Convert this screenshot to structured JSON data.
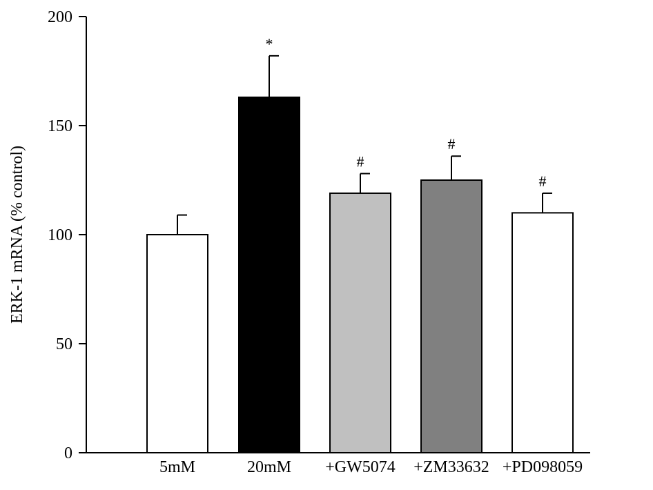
{
  "chart_data": {
    "type": "bar",
    "title": "",
    "xlabel": "",
    "ylabel": "ERK-1 mRNA (% control)",
    "ylim": [
      0,
      200
    ],
    "yticks": [
      0,
      50,
      100,
      150,
      200
    ],
    "grid": false,
    "categories": [
      "5mM",
      "20mM",
      "+GW5074",
      "+ZM33632",
      "+PD098059"
    ],
    "values": [
      100,
      163,
      119,
      125,
      110
    ],
    "errors": [
      9,
      19,
      9,
      11,
      9
    ],
    "annotations": [
      "",
      "*",
      "#",
      "#",
      "#"
    ],
    "colors": [
      "#ffffff",
      "#000000",
      "#c0c0c0",
      "#808080",
      "#ffffff"
    ]
  }
}
